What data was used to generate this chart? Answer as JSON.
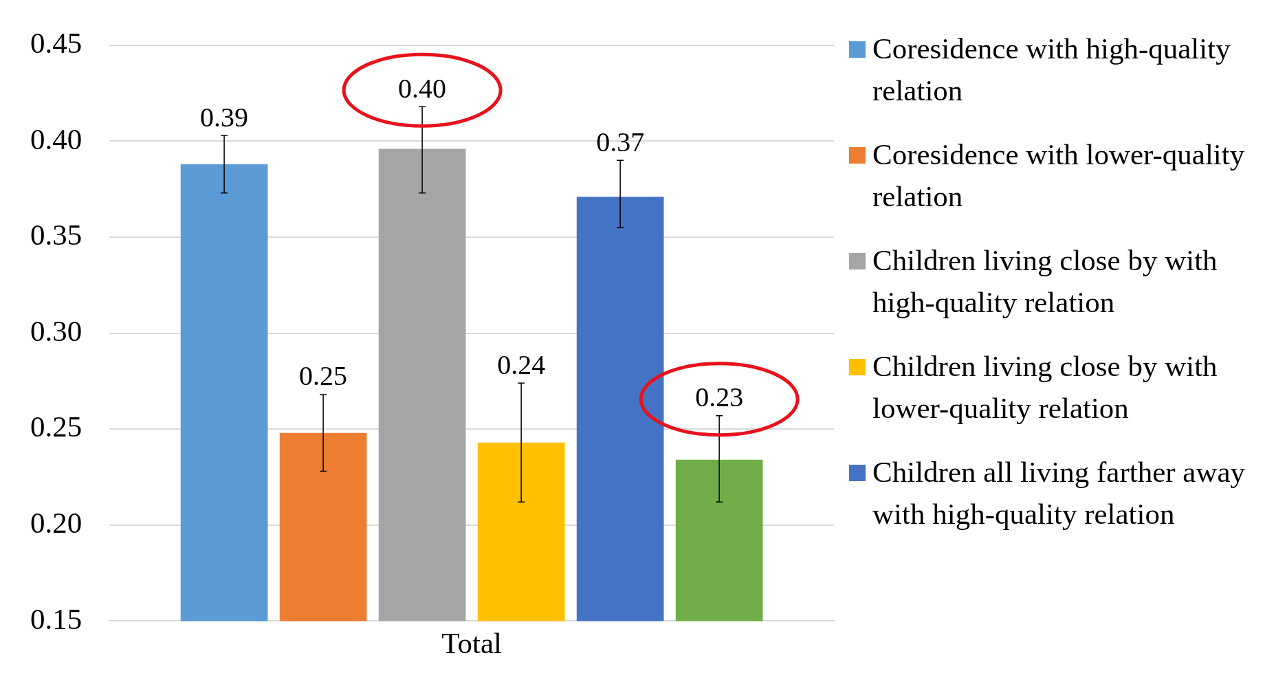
{
  "chart_data": {
    "type": "bar",
    "categories": [
      "Total"
    ],
    "series": [
      {
        "name": "Coresidence with high-quality relation",
        "color": "#5b9bd5",
        "values": [
          0.388
        ],
        "errors": [
          [
            0.373,
            0.403
          ]
        ],
        "value_labels": [
          "0.39"
        ]
      },
      {
        "name": "Coresidence with lower-quality relation",
        "color": "#ed7d31",
        "values": [
          0.248
        ],
        "errors": [
          [
            0.228,
            0.268
          ]
        ],
        "value_labels": [
          "0.25"
        ]
      },
      {
        "name": "Children living close by with high-quality relation",
        "color": "#a5a5a5",
        "values": [
          0.396
        ],
        "errors": [
          [
            0.373,
            0.418
          ]
        ],
        "value_labels": [
          "0.40"
        ]
      },
      {
        "name": "Children living close by with lower-quality relation",
        "color": "#ffc000",
        "values": [
          0.243
        ],
        "errors": [
          [
            0.212,
            0.274
          ]
        ],
        "value_labels": [
          "0.24"
        ]
      },
      {
        "name": "Children all living farther away with high-quality relation",
        "color": "#4472c4",
        "values": [
          0.371
        ],
        "errors": [
          [
            0.355,
            0.39
          ]
        ],
        "value_labels": [
          "0.37"
        ]
      },
      {
        "color": "#70ad47",
        "values": [
          0.234
        ],
        "errors": [
          [
            0.212,
            0.257
          ]
        ],
        "value_labels": [
          "0.23"
        ]
      }
    ],
    "ylim": [
      0.15,
      0.45
    ],
    "yticks": [
      {
        "value": 0.15,
        "label": "0.15"
      },
      {
        "value": 0.2,
        "label": "0.20"
      },
      {
        "value": 0.25,
        "label": "0.25"
      },
      {
        "value": 0.3,
        "label": "0.30"
      },
      {
        "value": 0.35,
        "label": "0.35"
      },
      {
        "value": 0.4,
        "label": "0.40"
      },
      {
        "value": 0.45,
        "label": "0.45"
      }
    ],
    "grid": "y",
    "legend": "right"
  }
}
